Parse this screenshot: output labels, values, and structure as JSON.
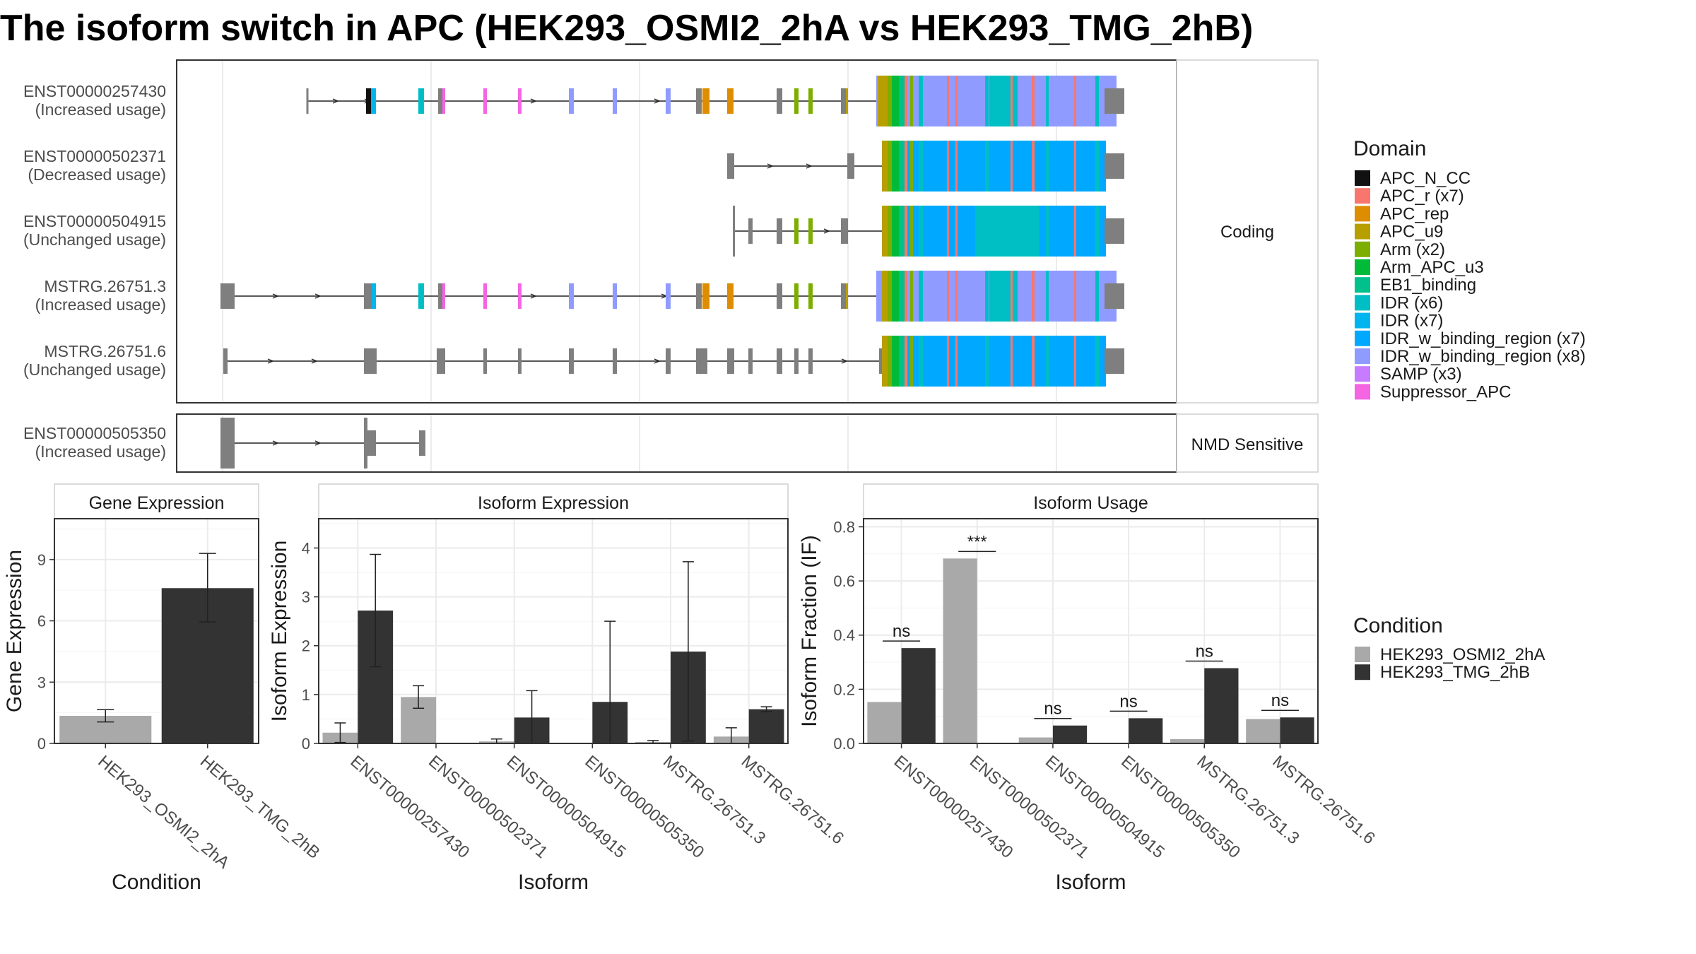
{
  "title": "The isoform switch in APC (HEK293_OSMI2_2hA vs HEK293_TMG_2hB)",
  "transcripts": {
    "coding_strip_label": "Coding",
    "nmd_strip_label": "NMD Sensitive",
    "rows": [
      {
        "id": "ENST00000257430",
        "usage": "(Increased usage)",
        "group": "coding"
      },
      {
        "id": "ENST00000502371",
        "usage": "(Decreased usage)",
        "group": "coding"
      },
      {
        "id": "ENST00000504915",
        "usage": "(Unchanged usage)",
        "group": "coding"
      },
      {
        "id": "MSTRG.26751.3",
        "usage": "(Increased usage)",
        "group": "coding"
      },
      {
        "id": "MSTRG.26751.6",
        "usage": "(Unchanged usage)",
        "group": "coding"
      },
      {
        "id": "ENST00000505350",
        "usage": "(Increased usage)",
        "group": "nmd"
      }
    ]
  },
  "domain_legend": {
    "title": "Domain",
    "items": [
      {
        "label": "APC_N_CC",
        "color": "#111111"
      },
      {
        "label": "APC_r (x7)",
        "color": "#F8766D"
      },
      {
        "label": "APC_rep",
        "color": "#DE8C00"
      },
      {
        "label": "APC_u9",
        "color": "#B79F00"
      },
      {
        "label": "Arm (x2)",
        "color": "#7CAE00"
      },
      {
        "label": "Arm_APC_u3",
        "color": "#00BA38"
      },
      {
        "label": "EB1_binding",
        "color": "#00C08B"
      },
      {
        "label": "IDR (x6)",
        "color": "#00BFC4"
      },
      {
        "label": "IDR (x7)",
        "color": "#00B4F0"
      },
      {
        "label": "IDR_w_binding_region (x7)",
        "color": "#00A9FF"
      },
      {
        "label": "IDR_w_binding_region (x8)",
        "color": "#8F9BFF"
      },
      {
        "label": "SAMP (x3)",
        "color": "#C77CFF"
      },
      {
        "label": "Suppressor_APC",
        "color": "#F564E3"
      }
    ]
  },
  "condition_legend": {
    "title": "Condition",
    "items": [
      {
        "label": "HEK293_OSMI2_2hA",
        "color": "#A9A9A9"
      },
      {
        "label": "HEK293_TMG_2hB",
        "color": "#333333"
      }
    ]
  },
  "chart_data": [
    {
      "type": "bar",
      "title": "Gene Expression",
      "xlabel": "Condition",
      "ylabel": "Gene Expression",
      "ylim": [
        0,
        11
      ],
      "yticks": [
        "0",
        "3",
        "6",
        "9"
      ],
      "categories": [
        "HEK293_OSMI2_2hA",
        "HEK293_TMG_2hB"
      ],
      "values": [
        1.35,
        7.6
      ],
      "err_low": [
        1.05,
        5.95
      ],
      "err_high": [
        1.65,
        9.3
      ]
    },
    {
      "type": "bar",
      "title": "Isoform Expression",
      "xlabel": "Isoform",
      "ylabel": "Isoform Expression",
      "ylim": [
        0,
        4.6
      ],
      "yticks": [
        "0",
        "1",
        "2",
        "3",
        "4"
      ],
      "categories": [
        "ENST00000257430",
        "ENST00000502371",
        "ENST00000504915",
        "ENST00000505350",
        "MSTRG.26751.3",
        "MSTRG.26751.6"
      ],
      "series": [
        {
          "name": "HEK293_OSMI2_2hA",
          "values": [
            0.22,
            0.95,
            0.04,
            0.005,
            0.03,
            0.14
          ],
          "err_low": [
            0.02,
            0.72,
            0.0,
            0.0,
            0.0,
            0.0
          ],
          "err_high": [
            0.42,
            1.18,
            0.09,
            0.0,
            0.06,
            0.32
          ]
        },
        {
          "name": "HEK293_TMG_2hB",
          "values": [
            2.72,
            0.0,
            0.53,
            0.85,
            1.88,
            0.7
          ],
          "err_low": [
            1.57,
            0.0,
            0.0,
            0.0,
            0.05,
            0.65
          ],
          "err_high": [
            3.87,
            0.0,
            1.08,
            2.5,
            3.72,
            0.75
          ]
        }
      ]
    },
    {
      "type": "bar",
      "title": "Isoform Usage",
      "xlabel": "Isoform",
      "ylabel": "Isoform Fraction (IF)",
      "ylim": [
        0,
        0.83
      ],
      "yticks": [
        "0.0",
        "0.2",
        "0.4",
        "0.6",
        "0.8"
      ],
      "categories": [
        "ENST00000257430",
        "ENST00000502371",
        "ENST00000504915",
        "ENST00000505350",
        "MSTRG.26751.3",
        "MSTRG.26751.6"
      ],
      "series": [
        {
          "name": "HEK293_OSMI2_2hA",
          "values": [
            0.153,
            0.683,
            0.022,
            0.0,
            0.016,
            0.09
          ]
        },
        {
          "name": "HEK293_TMG_2hB",
          "values": [
            0.352,
            0.0,
            0.066,
            0.093,
            0.278,
            0.096
          ]
        }
      ],
      "significance": [
        "ns",
        "***",
        "ns",
        "ns",
        "ns",
        "ns"
      ]
    }
  ]
}
